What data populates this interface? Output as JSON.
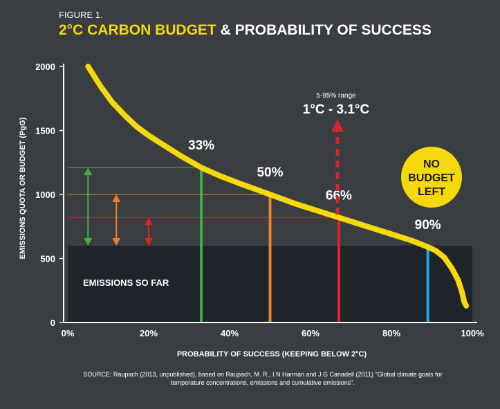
{
  "figure_label": "FIGURE 1.",
  "title": {
    "highlight": "2°C CARBON BUDGET",
    "rest": " & PROBABILITY OF SUCCESS",
    "highlight_color": "#f5d90a"
  },
  "source": {
    "line1": "SOURCE: Raupach (2013, unpublished), based on Raupach, M. R., I.N Harman and J.G Canadell (2011) \"Global climate goals for",
    "line2": "temperature concentrations, emissions and cumulative emissions\"."
  },
  "chart_data": {
    "type": "line",
    "xlabel": "PROBABILITY OF SUCCESS (KEEPING BELOW 2°C)",
    "ylabel": "EMISSIONS QUOTA OR BUDGET (PgG)",
    "xlim": [
      0,
      100
    ],
    "ylim": [
      0,
      2000
    ],
    "x_ticks": [
      0,
      20,
      40,
      60,
      80,
      100
    ],
    "x_tick_labels": [
      "0%",
      "20%",
      "40%",
      "60%",
      "80%",
      "100%"
    ],
    "y_ticks": [
      0,
      500,
      1000,
      1500,
      2000
    ],
    "y_tick_labels": [
      "0",
      "500",
      "1000",
      "1500",
      "2000"
    ],
    "curve": {
      "color": "#f5d90a",
      "x": [
        5,
        8,
        11,
        14,
        17,
        20,
        24,
        28,
        33,
        38,
        43,
        50,
        56,
        62,
        67,
        73,
        79,
        85,
        89,
        91,
        93,
        95,
        96.5,
        97.5,
        98,
        98.5
      ],
      "y": [
        2000,
        1850,
        1720,
        1620,
        1530,
        1460,
        1380,
        1300,
        1210,
        1140,
        1080,
        1000,
        930,
        870,
        820,
        760,
        700,
        640,
        590,
        560,
        510,
        420,
        330,
        230,
        160,
        130
      ]
    },
    "emissions_so_far": {
      "label": "EMISSIONS SO FAR",
      "value": 600,
      "color": "#1f232a"
    },
    "probability_markers": [
      {
        "label": "33%",
        "x": 33,
        "budget": 1210,
        "color": "#3fae49"
      },
      {
        "label": "50%",
        "x": 50,
        "budget": 1000,
        "color": "#e8812a"
      },
      {
        "label": "66%",
        "x": 67,
        "budget": 820,
        "color": "#d8252a"
      },
      {
        "label": "90%",
        "x": 89,
        "budget": 590,
        "color": "#22a8e0"
      }
    ],
    "remaining_arrows": [
      {
        "x": 5,
        "from": 600,
        "to": 1210,
        "color": "#3fae49"
      },
      {
        "x": 12,
        "from": 600,
        "to": 1000,
        "color": "#e8812a"
      },
      {
        "x": 20,
        "from": 600,
        "to": 820,
        "color": "#d8252a"
      }
    ],
    "warming_range": {
      "small_label": "5-95% range",
      "label": "1°C - 3.1°C",
      "color": "#d8252a"
    },
    "badge": {
      "lines": [
        "NO",
        "BUDGET",
        "LEFT"
      ],
      "color": "#f5d90a"
    }
  }
}
